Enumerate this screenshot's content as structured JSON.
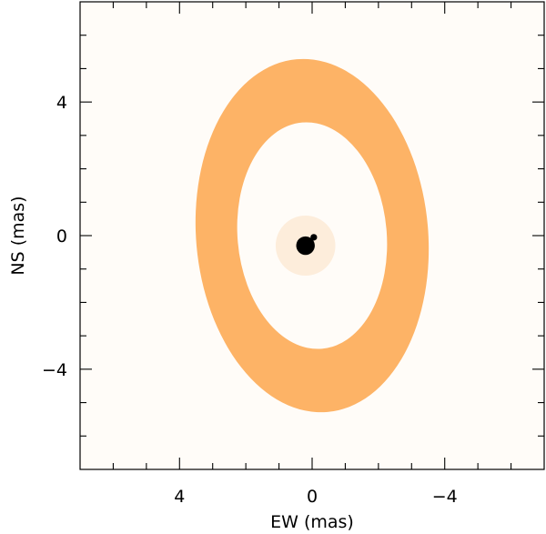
{
  "chart_data": {
    "type": "image",
    "title": "",
    "xlabel": "EW (mas)",
    "ylabel": "NS (mas)",
    "xlim": [
      7,
      -7
    ],
    "ylim": [
      -7,
      7
    ],
    "x_ticks": [
      4,
      0,
      -4
    ],
    "x_tick_labels": [
      "4",
      "0",
      "−4"
    ],
    "y_ticks": [
      4,
      0,
      -4
    ],
    "y_tick_labels": [
      "4",
      "0",
      "−4"
    ],
    "minor_tick_step": 1,
    "grid": false,
    "ring": {
      "center": [
        0.0,
        0.0
      ],
      "outer_semi_x": 3.5,
      "outer_semi_y": 5.3,
      "inner_semi_x": 2.25,
      "inner_semi_y": 3.4,
      "rotation_deg": -5,
      "color": "#fdb366"
    },
    "central_source": {
      "x": 0.2,
      "y": -0.3,
      "radius": 0.28,
      "companion": {
        "x": -0.05,
        "y": -0.05,
        "radius": 0.1
      },
      "color": "#000000"
    },
    "background_color": "#fffcf8"
  }
}
